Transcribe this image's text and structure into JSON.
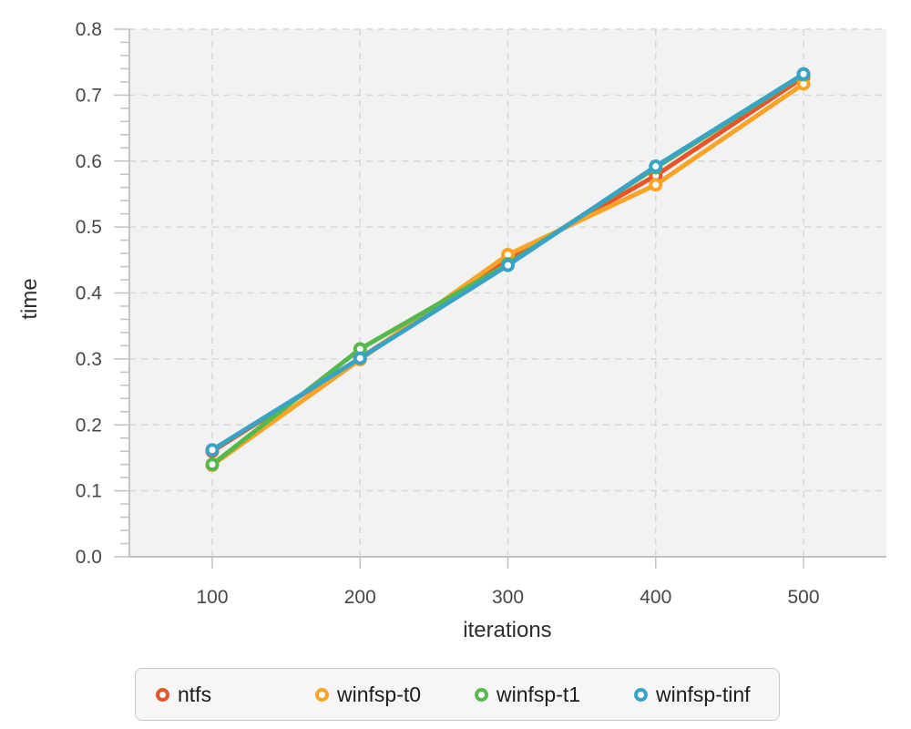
{
  "chart_data": {
    "type": "line",
    "xlabel": "iterations",
    "ylabel": "time",
    "x": [
      100,
      200,
      300,
      400,
      500
    ],
    "x_tick_labels": [
      "100",
      "200",
      "300",
      "400",
      "500"
    ],
    "y_tick_labels": [
      "0.0",
      "0.1",
      "0.2",
      "0.3",
      "0.4",
      "0.5",
      "0.6",
      "0.7",
      "0.8"
    ],
    "ylim": [
      0.0,
      0.8
    ],
    "y_major_step": 0.1,
    "y_minor_step": 0.02,
    "grid": true,
    "grid_style": "dashed",
    "legend_position": "bottom",
    "plot_bg_color": "#f2f2f2",
    "grid_color": "#d7d7d7",
    "axis_color": "#c2c2c2",
    "series": [
      {
        "name": "ntfs",
        "color": "#e8552c",
        "values": [
          0.16,
          0.301,
          0.45,
          0.578,
          0.727
        ]
      },
      {
        "name": "winfsp-t0",
        "color": "#f9a327",
        "values": [
          0.139,
          0.299,
          0.458,
          0.564,
          0.717
        ]
      },
      {
        "name": "winfsp-t1",
        "color": "#55b84a",
        "values": [
          0.14,
          0.315,
          0.444,
          0.59,
          0.731
        ]
      },
      {
        "name": "winfsp-tinf",
        "color": "#39a3c6",
        "values": [
          0.162,
          0.301,
          0.442,
          0.592,
          0.732
        ]
      }
    ]
  }
}
